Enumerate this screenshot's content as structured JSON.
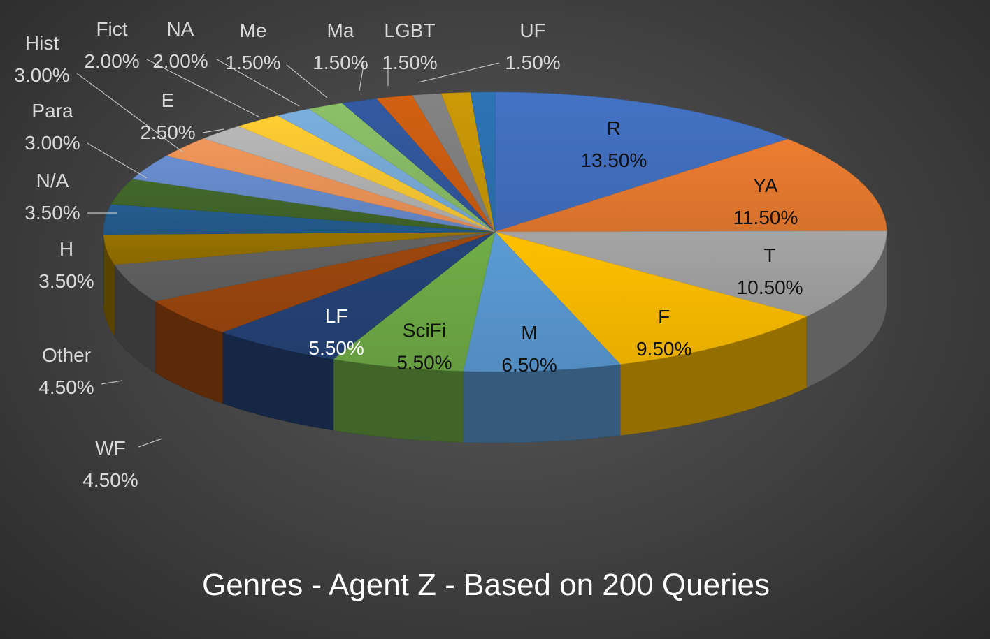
{
  "chart_data": {
    "type": "pie",
    "title": "Genres - Agent Z - Based on 200 Queries",
    "categories": [
      "R",
      "YA",
      "T",
      "F",
      "M",
      "SciFi",
      "LF",
      "WF",
      "Other",
      "H",
      "N/A",
      "Para",
      "Hist",
      "E",
      "Fict",
      "NA",
      "Me",
      "Ma",
      "LGBT",
      "UF"
    ],
    "values": [
      13.5,
      11.5,
      10.5,
      9.5,
      6.5,
      5.5,
      5.5,
      4.5,
      4.5,
      3.5,
      3.5,
      3.0,
      3.0,
      2.5,
      2.0,
      2.0,
      1.5,
      1.5,
      1.5,
      1.5
    ],
    "labels": [
      "13.50%",
      "11.50%",
      "10.50%",
      "9.50%",
      "6.50%",
      "5.50%",
      "5.50%",
      "4.50%",
      "4.50%",
      "3.50%",
      "3.50%",
      "3.00%",
      "3.00%",
      "2.50%",
      "2.00%",
      "2.00%",
      "1.50%",
      "1.50%",
      "1.50%",
      "1.50%"
    ],
    "colors": [
      "#4472C4",
      "#ED7D31",
      "#A5A5A5",
      "#FFC000",
      "#5B9BD5",
      "#70AD47",
      "#264478",
      "#9E480E",
      "#636363",
      "#997300",
      "#255E91",
      "#43682B",
      "#698ED0",
      "#F1975A",
      "#B7B7B7",
      "#FFCD33",
      "#7CAFDD",
      "#8CC168",
      "#335AA1",
      "#D26012"
    ],
    "extra_slices": [
      {
        "color": "#848484",
        "value": 1.2
      },
      {
        "color": "#CC9A06",
        "value": 1.2
      },
      {
        "color": "#2E75B6",
        "value": 1.0
      }
    ],
    "style": "3d",
    "legend": "none"
  }
}
